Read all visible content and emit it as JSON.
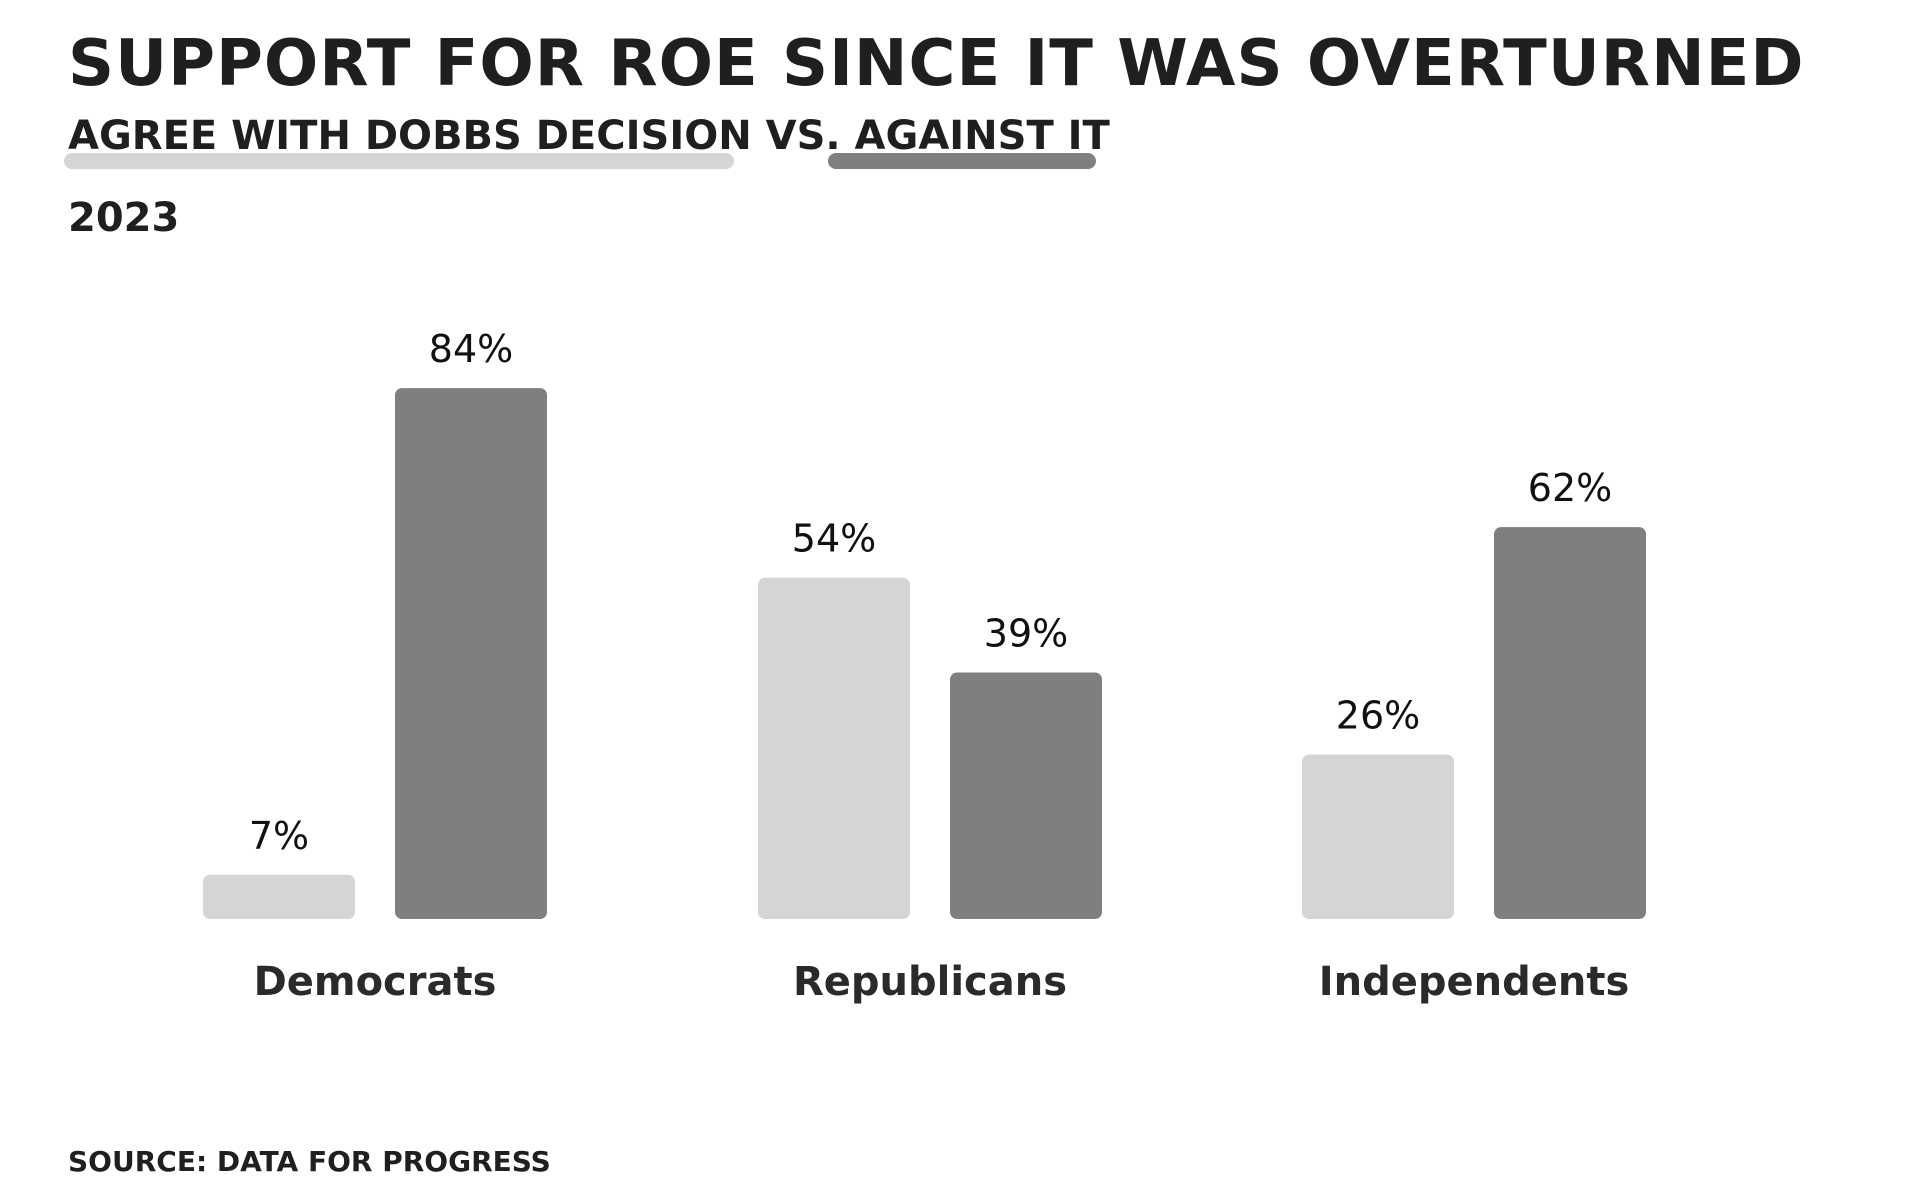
{
  "header": {
    "title": "SUPPORT FOR ROE SINCE IT WAS OVERTURNED",
    "subtitle_part1": "AGREE WITH DOBBS DECISION",
    "subtitle_sep": " VS. ",
    "subtitle_part2": "AGAINST IT",
    "year": "2023"
  },
  "footer": {
    "source": "SOURCE: DATA FOR PROGRESS"
  },
  "colors": {
    "agree": "#d6d5d6",
    "against": "#7f7f7f"
  },
  "chart_data": {
    "type": "bar",
    "categories": [
      "Democrats",
      "Republicans",
      "Independents"
    ],
    "series": [
      {
        "name": "AGREE WITH DOBBS DECISION",
        "values": [
          7,
          54,
          26
        ],
        "labels": [
          "7%",
          "54%",
          "26%"
        ]
      },
      {
        "name": "AGAINST IT",
        "values": [
          84,
          39,
          62
        ],
        "labels": [
          "84%",
          "39%",
          "62%"
        ]
      }
    ],
    "title": "SUPPORT FOR ROE SINCE IT WAS OVERTURNED",
    "subtitle": "AGREE WITH DOBBS DECISION VS. AGAINST IT",
    "xlabel": "",
    "ylabel": "",
    "ylim": [
      0,
      100
    ],
    "grid": false,
    "legend": "subtitle"
  }
}
